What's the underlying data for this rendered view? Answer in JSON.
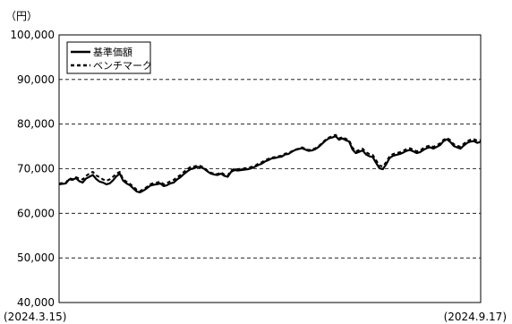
{
  "chart_data": {
    "type": "line",
    "yunit": "（円）",
    "ylim": [
      40000,
      100000
    ],
    "yticks": [
      40000,
      50000,
      60000,
      70000,
      80000,
      90000,
      100000
    ],
    "ytick_labels": [
      "40,000",
      "50,000",
      "60,000",
      "70,000",
      "80,000",
      "90,000",
      "100,000"
    ],
    "x_start_label": "(2024.3.15)",
    "x_end_label": "(2024.9.17)",
    "grid": "dashed horizontal",
    "legend_position": "top-left",
    "series": [
      {
        "name": "基準価額",
        "style": "solid",
        "values": [
          66500,
          66600,
          66700,
          67600,
          67500,
          67900,
          67200,
          66900,
          67800,
          68200,
          68600,
          67700,
          67100,
          66900,
          66500,
          66700,
          67400,
          68300,
          68900,
          67300,
          66700,
          66300,
          65600,
          64900,
          64700,
          65100,
          65600,
          66200,
          66400,
          66500,
          66700,
          66100,
          66300,
          66700,
          66900,
          67600,
          68100,
          68800,
          69400,
          69900,
          70100,
          70400,
          70300,
          70000,
          69400,
          68900,
          68700,
          68600,
          68900,
          68400,
          68200,
          69300,
          69700,
          69600,
          69700,
          69800,
          69900,
          70100,
          70400,
          70800,
          71100,
          71600,
          71900,
          72300,
          72400,
          72600,
          72700,
          73200,
          73300,
          73800,
          74200,
          74400,
          74600,
          74300,
          74000,
          74100,
          74400,
          74900,
          75600,
          76300,
          76800,
          77000,
          77300,
          76500,
          76800,
          76400,
          76100,
          74300,
          73500,
          73800,
          74100,
          73200,
          72800,
          72600,
          71300,
          70100,
          69900,
          71000,
          72400,
          72900,
          73100,
          73300,
          73600,
          74000,
          74200,
          73900,
          73500,
          73700,
          74200,
          74600,
          74800,
          74500,
          74900,
          75300,
          76200,
          76600,
          76000,
          75100,
          74800,
          74500,
          75200,
          75800,
          76100,
          76200,
          75800,
          76000
        ]
      },
      {
        "name": "ベンチマーク",
        "style": "dashed",
        "values": [
          66700,
          66800,
          66900,
          67800,
          67700,
          68100,
          67800,
          67600,
          68400,
          68900,
          69300,
          68500,
          68100,
          67600,
          67300,
          67600,
          68200,
          68900,
          69300,
          67600,
          67100,
          66600,
          66000,
          65300,
          65000,
          65400,
          65900,
          66500,
          66800,
          66900,
          67100,
          66500,
          66800,
          67200,
          67500,
          68100,
          68600,
          69300,
          69900,
          70400,
          70500,
          70700,
          70600,
          70200,
          69600,
          69100,
          68900,
          68800,
          69200,
          68700,
          68500,
          69600,
          70000,
          69900,
          70000,
          70100,
          70200,
          70400,
          70600,
          71100,
          71400,
          71900,
          72200,
          72500,
          72600,
          72800,
          72900,
          73400,
          73500,
          73900,
          74300,
          74500,
          74800,
          74500,
          74200,
          74300,
          74600,
          75100,
          75800,
          76500,
          77000,
          77300,
          77600,
          76800,
          77100,
          76700,
          76400,
          74700,
          73900,
          74200,
          74500,
          73700,
          73300,
          73100,
          71900,
          70700,
          70500,
          71500,
          72800,
          73300,
          73500,
          73700,
          74000,
          74400,
          74600,
          74300,
          73900,
          74100,
          74600,
          75000,
          75200,
          74900,
          75300,
          75700,
          76500,
          76900,
          76400,
          75500,
          75200,
          74900,
          75600,
          76200,
          76500,
          76600,
          76300,
          76400
        ]
      }
    ]
  }
}
